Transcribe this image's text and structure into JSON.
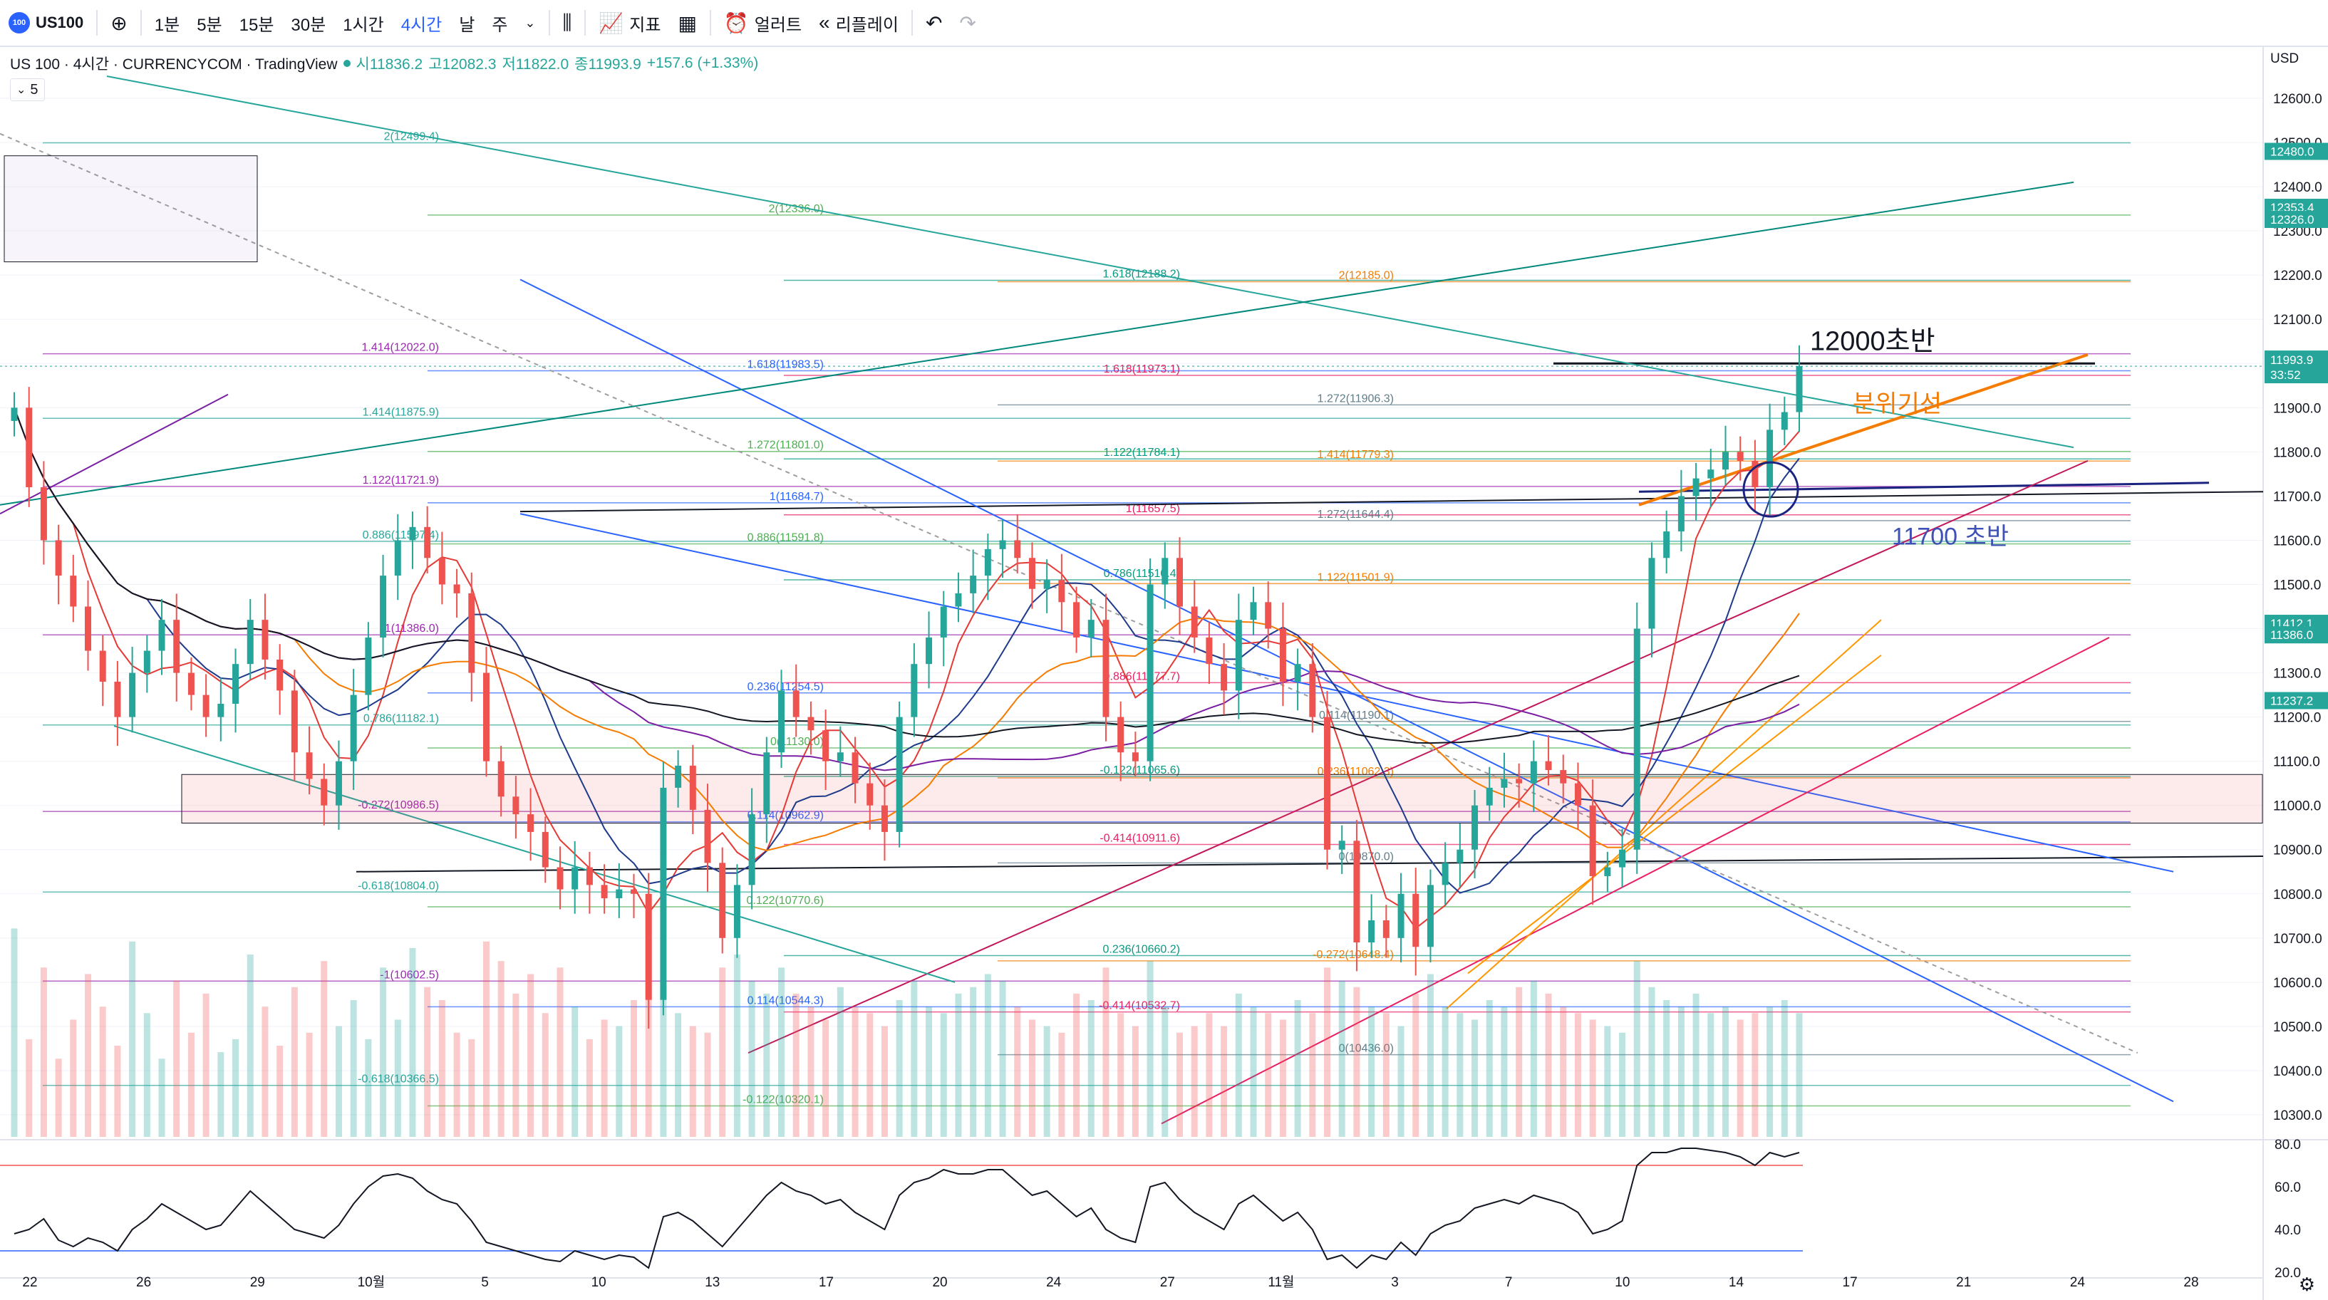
{
  "toolbar": {
    "symbol": "US100",
    "intervals": [
      "1분",
      "5분",
      "15분",
      "30분",
      "1시간",
      "4시간"
    ],
    "active_interval": "4시간",
    "more_intervals": [
      "날",
      "주"
    ],
    "indicators_label": "지표",
    "alert_label": "얼러트",
    "replay_label": "리플레이"
  },
  "legend": {
    "title": "US 100 · 4시간 · CURRENCYCOM · TradingView",
    "open": "시11836.2",
    "high": "고12082.3",
    "low": "저11822.0",
    "close": "종11993.9",
    "change": "+157.6 (+1.33%)",
    "study_value": "5"
  },
  "colors": {
    "up": "#26a69a",
    "down": "#ef5350",
    "blue": "#2962ff",
    "accent": "#2962ff",
    "orange": "#f57c00",
    "red_ma": "#e53935",
    "purple": "#7b1fa2",
    "black_ma": "#131722"
  },
  "chart_data": {
    "type": "candlestick",
    "symbol": "US 100",
    "interval": "4시간",
    "y_axis": {
      "unit": "USD",
      "range": [
        10250,
        12700
      ],
      "ticks": [
        10300,
        10400,
        10500,
        10600,
        10700,
        10800,
        10900,
        11000,
        11100,
        11200,
        11300,
        11400,
        11500,
        11600,
        11700,
        11800,
        11900,
        12000,
        12100,
        12200,
        12300,
        12400,
        12500,
        12600
      ]
    },
    "x_axis": {
      "ticks": [
        "22",
        "26",
        "29",
        "10월",
        "5",
        "10",
        "13",
        "17",
        "20",
        "24",
        "27",
        "11월",
        "3",
        "7",
        "10",
        "14",
        "17",
        "21",
        "24",
        "28"
      ]
    },
    "last_price": {
      "price": 11993.9,
      "countdown": "33:52"
    },
    "price_tags": [
      {
        "price": 12480.0,
        "label": "12480.0"
      },
      {
        "price": 12353.4,
        "label": "12353.4"
      },
      {
        "price": 12326.0,
        "label": "12326.0"
      },
      {
        "price": 11412.1,
        "label": "11412.1"
      },
      {
        "price": 11386.0,
        "label": "11386.0"
      },
      {
        "price": 11237.2,
        "label": "11237.2"
      }
    ],
    "close_path": [
      11900,
      11720,
      11600,
      11520,
      11450,
      11350,
      11280,
      11200,
      11300,
      11350,
      11420,
      11300,
      11250,
      11200,
      11230,
      11320,
      11420,
      11330,
      11260,
      11120,
      11060,
      11000,
      11100,
      11250,
      11380,
      11520,
      11600,
      11630,
      11560,
      11500,
      11480,
      11300,
      11100,
      11020,
      10980,
      10940,
      10860,
      10810,
      10860,
      10820,
      10790,
      10810,
      10800,
      10560,
      11040,
      11090,
      10990,
      10870,
      10700,
      10820,
      10980,
      11120,
      11260,
      11200,
      11170,
      11100,
      11120,
      11050,
      11000,
      10940,
      11200,
      11320,
      11380,
      11450,
      11480,
      11520,
      11580,
      11600,
      11560,
      11490,
      11510,
      11460,
      11380,
      11420,
      11200,
      11120,
      11100,
      11500,
      11560,
      11450,
      11380,
      11320,
      11260,
      11420,
      11460,
      11400,
      11280,
      11320,
      11200,
      10900,
      10920,
      10690,
      10740,
      10700,
      10800,
      10680,
      10820,
      10870,
      10900,
      11000,
      11040,
      11060,
      11050,
      11100,
      11080,
      11050,
      11000,
      10840,
      10860,
      10900,
      11400,
      11560,
      11620,
      11700,
      11740,
      11760,
      11800,
      11780,
      11720,
      11850,
      11890,
      11994
    ],
    "volume_path": [
      320,
      150,
      260,
      120,
      180,
      250,
      200,
      140,
      300,
      190,
      120,
      240,
      160,
      220,
      130,
      150,
      280,
      200,
      140,
      230,
      160,
      270,
      170,
      210,
      150,
      260,
      180,
      290,
      230,
      210,
      160,
      150,
      300,
      270,
      220,
      250,
      190,
      260,
      200,
      150,
      180,
      170,
      210,
      350,
      230,
      190,
      170,
      160,
      260,
      280,
      240,
      220,
      260,
      220,
      200,
      180,
      230,
      200,
      190,
      170,
      210,
      240,
      200,
      190,
      220,
      230,
      250,
      240,
      200,
      180,
      170,
      160,
      220,
      210,
      260,
      190,
      170,
      270,
      200,
      160,
      170,
      190,
      170,
      220,
      200,
      190,
      180,
      210,
      190,
      260,
      240,
      230,
      200,
      190,
      170,
      220,
      250,
      200,
      190,
      180,
      210,
      200,
      230,
      240,
      220,
      200,
      190,
      180,
      170,
      160,
      270,
      230,
      210,
      200,
      220,
      190,
      200,
      180,
      190,
      200,
      210,
      190
    ],
    "fib_levels": [
      {
        "label": "2(12499.4)",
        "price": 12499.4
      },
      {
        "label": "2(12336.0)",
        "price": 12336.0
      },
      {
        "label": "1.618(12188.2)",
        "price": 12188.2
      },
      {
        "label": "2(12185.0)",
        "price": 12185.0
      },
      {
        "label": "1.414(12022.0)",
        "price": 12022.0
      },
      {
        "label": "1.618(11983.5)",
        "price": 11983.5
      },
      {
        "label": "1.618(11973.1)",
        "price": 11973.1
      },
      {
        "label": "1.272(11906.3)",
        "price": 11906.3
      },
      {
        "label": "1.414(11875.9)",
        "price": 11875.9
      },
      {
        "label": "1.272(11801.0)",
        "price": 11801.0
      },
      {
        "label": "1.122(11784.1)",
        "price": 11784.1
      },
      {
        "label": "1.414(11779.3)",
        "price": 11779.3
      },
      {
        "label": "1.122(11721.9)",
        "price": 11721.9
      },
      {
        "label": "1(11684.7)",
        "price": 11684.7
      },
      {
        "label": "1(11657.5)",
        "price": 11657.5
      },
      {
        "label": "1.272(11644.4)",
        "price": 11644.4
      },
      {
        "label": "0.886(11597.4)",
        "price": 11597.4
      },
      {
        "label": "0.886(11591.8)",
        "price": 11591.8
      },
      {
        "label": "0.786(11510.4)",
        "price": 11510.4
      },
      {
        "label": "1.122(11501.9)",
        "price": 11501.9
      },
      {
        "label": "1(11386.0)",
        "price": 11386.0
      },
      {
        "label": "0.236(11254.5)",
        "price": 11254.5
      },
      {
        "label": "0.886(11277.7)",
        "price": 11277.7
      },
      {
        "label": "0.114(11190.1)",
        "price": 11190.1
      },
      {
        "label": "0.786(11182.1)",
        "price": 11182.1
      },
      {
        "label": "0(11130.0)",
        "price": 11130.0
      },
      {
        "label": "-0.122(11065.6)",
        "price": 11065.6
      },
      {
        "label": "0.236(11062.3)",
        "price": 11062.3
      },
      {
        "label": "-0.272(10986.5)",
        "price": 10986.5
      },
      {
        "label": "0.114(10962.9)",
        "price": 10962.9
      },
      {
        "label": "-0.414(10911.6)",
        "price": 10911.6
      },
      {
        "label": "0(10870.0)",
        "price": 10870.0
      },
      {
        "label": "-0.618(10804.0)",
        "price": 10804.0
      },
      {
        "label": "0.122(10770.6)",
        "price": 10770.6
      },
      {
        "label": "0.236(10660.2)",
        "price": 10660.2
      },
      {
        "label": "-0.272(10648.4)",
        "price": 10648.4
      },
      {
        "label": "-1(10602.5)",
        "price": 10602.5
      },
      {
        "label": "0.114(10544.3)",
        "price": 10544.3
      },
      {
        "label": "-0.414(10532.7)",
        "price": 10532.7
      },
      {
        "label": "0(10436.0)",
        "price": 10436.0
      },
      {
        "label": "-0.618(10366.5)",
        "price": 10366.5
      },
      {
        "label": "-0.122(10320.1)",
        "price": 10320.1
      }
    ],
    "annotations": [
      {
        "text": "12000초반"
      },
      {
        "text": "분위기선"
      },
      {
        "text": "11700 초반"
      }
    ],
    "rsi": {
      "range": [
        20,
        80
      ],
      "ticks": [
        20.0,
        40.0,
        60.0,
        80.0
      ],
      "levels": [
        70,
        30
      ],
      "values": [
        38,
        40,
        45,
        35,
        32,
        36,
        34,
        30,
        40,
        45,
        52,
        48,
        44,
        40,
        42,
        50,
        58,
        52,
        46,
        40,
        38,
        36,
        42,
        52,
        60,
        65,
        66,
        64,
        58,
        54,
        52,
        44,
        34,
        32,
        30,
        28,
        26,
        25,
        30,
        28,
        26,
        28,
        27,
        22,
        46,
        48,
        44,
        38,
        32,
        40,
        48,
        56,
        62,
        58,
        56,
        52,
        54,
        48,
        44,
        40,
        56,
        62,
        64,
        68,
        66,
        66,
        68,
        68,
        62,
        56,
        58,
        52,
        46,
        50,
        40,
        36,
        34,
        60,
        62,
        54,
        48,
        44,
        40,
        52,
        56,
        50,
        44,
        48,
        40,
        26,
        28,
        22,
        28,
        26,
        34,
        28,
        38,
        42,
        44,
        50,
        52,
        54,
        52,
        56,
        54,
        52,
        48,
        38,
        40,
        44,
        70,
        76,
        76,
        78,
        78,
        77,
        76,
        74,
        70,
        76,
        74,
        76
      ]
    }
  }
}
